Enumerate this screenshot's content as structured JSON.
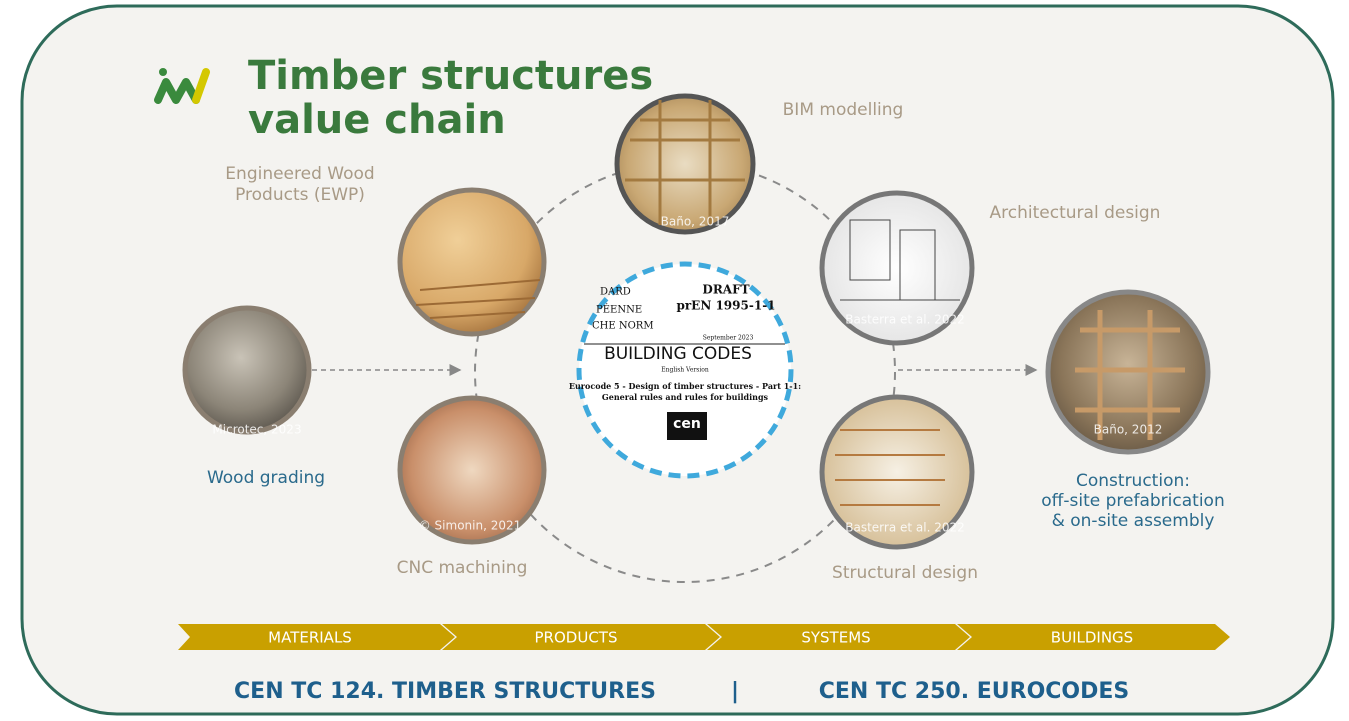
{
  "header": {
    "title_lines": [
      "Timber structures",
      "value chain"
    ]
  },
  "nodes": [
    {
      "label_lines": [
        "Wood grading"
      ],
      "credit": "Microtec, 2023"
    },
    {
      "label_lines": [
        "Engineered Wood",
        "Products (EWP)"
      ]
    },
    {
      "label_lines": [
        "CNC machining"
      ],
      "credit": "© Simonin, 2021"
    },
    {
      "label_lines": [
        "BIM modelling"
      ],
      "credit": "Baño, 2017"
    },
    {
      "label_lines": [
        "Architectural design"
      ],
      "credit": "Basterra et al. 2022"
    },
    {
      "label_lines": [
        "Structural design"
      ],
      "credit": "Basterra et al. 2022"
    },
    {
      "label_lines": [
        "Construction:",
        "off-site prefabrication",
        "& on-site assembly"
      ],
      "credit": "Baño, 2012"
    }
  ],
  "center": {
    "label": "BUILDING CODES",
    "document": {
      "left_fragments": [
        "DARD",
        "PÉENNE",
        "CHE NORM"
      ],
      "heading": "DRAFT",
      "code": "prEN 1995-1-1",
      "date": "September 2023",
      "version": "English Version",
      "title_lines": [
        "Eurocode 5 - Design of timber structures - Part 1-1:",
        "General rules and rules for buildings"
      ],
      "logo": "cen"
    }
  },
  "stages": [
    "MATERIALS",
    "PRODUCTS",
    "SYSTEMS",
    "BUILDINGS"
  ],
  "footer": {
    "left": "CEN TC 124. TIMBER STRUCTURES",
    "separator": "|",
    "right": "CEN TC 250. EUROCODES"
  }
}
